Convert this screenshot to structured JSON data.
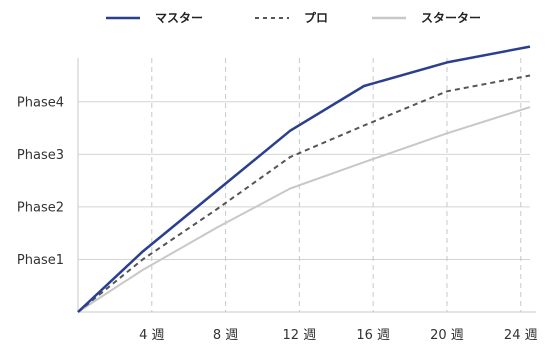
{
  "chart_data": {
    "type": "line",
    "title": "",
    "xlabel": "",
    "ylabel": "",
    "x": [
      0,
      4,
      8,
      12,
      16,
      20,
      24
    ],
    "x_tick_labels": [
      "4 週",
      "8 週",
      "12 週",
      "16 週",
      "20 週",
      "24 週"
    ],
    "x_tick_values": [
      4,
      8,
      12,
      16,
      20,
      24
    ],
    "y_tick_labels": [
      "Phase1",
      "Phase2",
      "Phase3",
      "Phase4"
    ],
    "y_tick_values": [
      1,
      2,
      3,
      4
    ],
    "xlim": [
      0,
      24.5
    ],
    "ylim": [
      0,
      5.1
    ],
    "grid": {
      "horizontal": "solid",
      "vertical": "dashed"
    },
    "legend_position": "top",
    "series": [
      {
        "name": "マスター",
        "color": "#2B3F8F",
        "style": "solid",
        "x": [
          0,
          3.5,
          7.5,
          11.5,
          15.5,
          20,
          24.5
        ],
        "y": [
          0,
          1.15,
          2.3,
          3.45,
          4.3,
          4.75,
          5.05
        ]
      },
      {
        "name": "プロ",
        "color": "#555555",
        "style": "dashed",
        "x": [
          0,
          3.5,
          7.5,
          11.5,
          15.5,
          20,
          24.5
        ],
        "y": [
          0,
          1.0,
          1.95,
          2.95,
          3.55,
          4.2,
          4.5
        ]
      },
      {
        "name": "スターター",
        "color": "#C8C8C8",
        "style": "solid",
        "x": [
          0,
          3.5,
          7.5,
          11.5,
          15.5,
          20,
          24.5
        ],
        "y": [
          0,
          0.8,
          1.6,
          2.35,
          2.85,
          3.4,
          3.9
        ]
      }
    ]
  }
}
